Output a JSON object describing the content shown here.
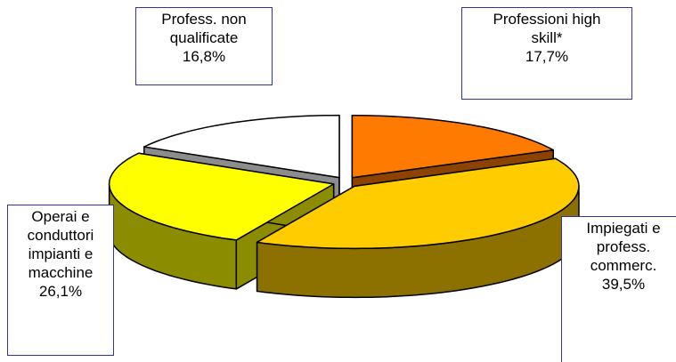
{
  "chart_data": {
    "type": "pie",
    "categories": [
      "Professioni high\nskill*",
      "Impiegati e\nprofess.\ncommerc.",
      "Operai e\nconduttori\nimpianti e\nmacchine",
      "Profess. non\nqualificate"
    ],
    "values": [
      17.7,
      39.5,
      26.1,
      16.8
    ],
    "value_labels": [
      "17,7%",
      "39,5%",
      "26,1%",
      "16,8%"
    ],
    "colors": [
      "#FF7A00",
      "#FFCC00",
      "#FFFF00",
      "#FFFFFF"
    ]
  }
}
